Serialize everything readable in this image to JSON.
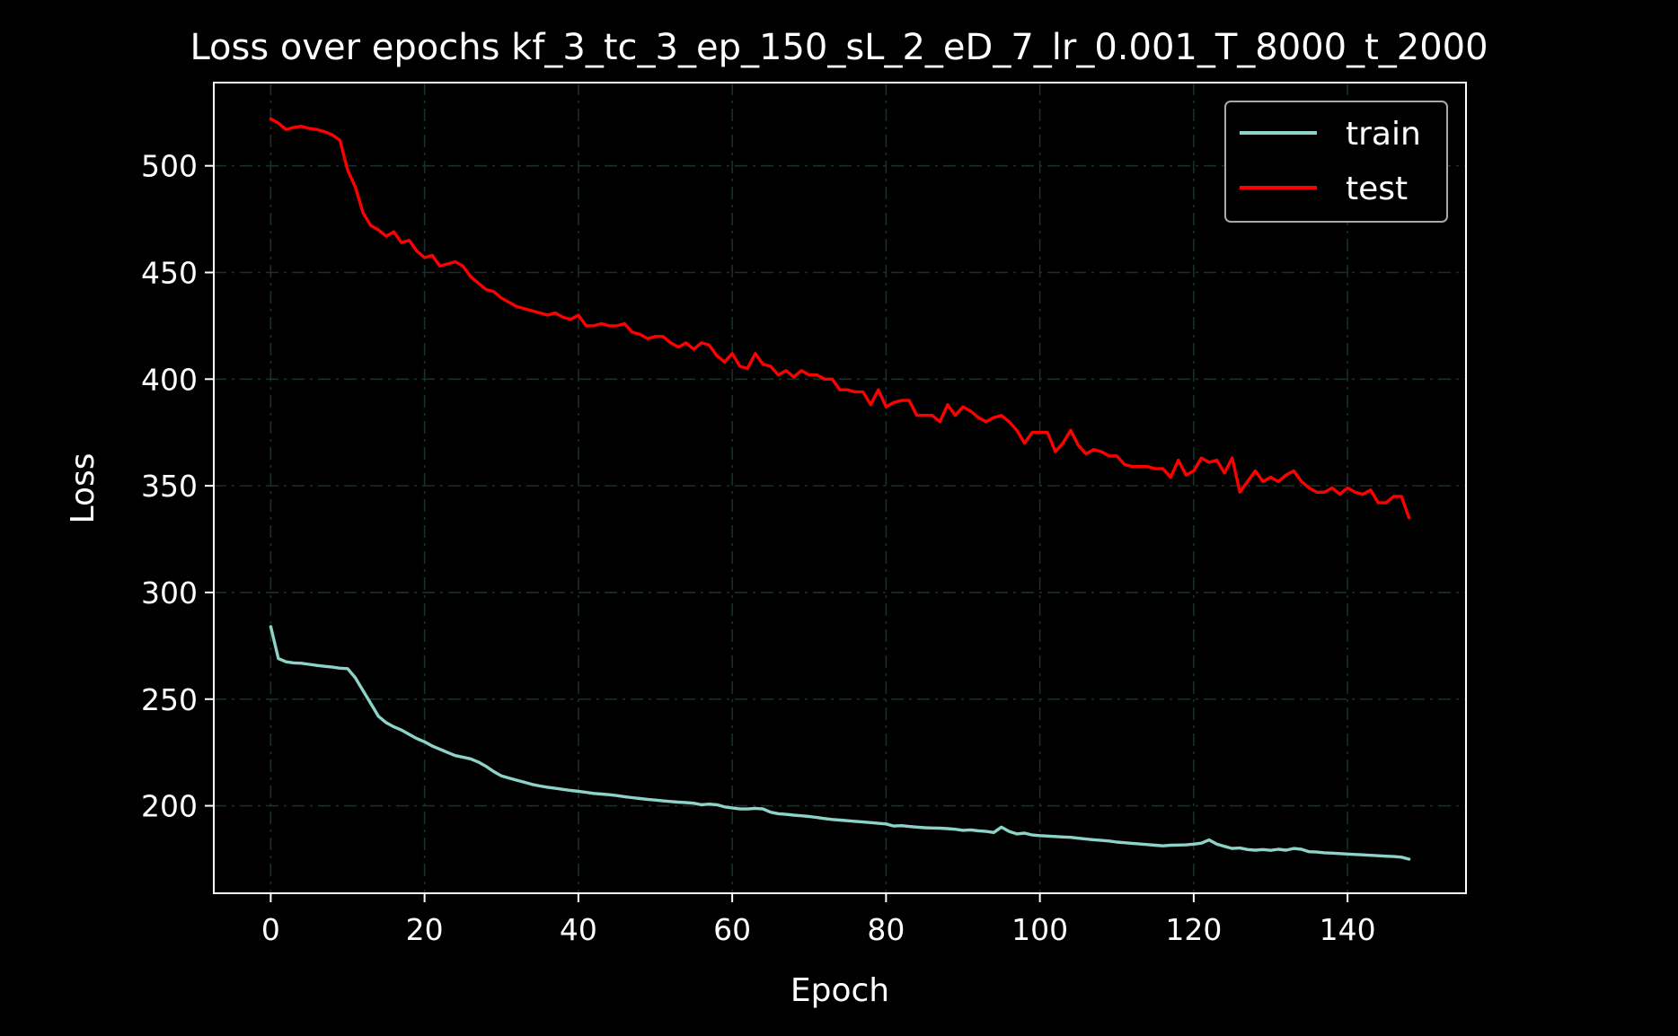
{
  "chart_data": {
    "type": "line",
    "title": "Loss over epochs kf_3_tc_3_ep_150_sL_2_eD_7_lr_0.001_T_8000_t_2000",
    "xlabel": "Epoch",
    "ylabel": "Loss",
    "xlim": [
      -7.4,
      155.4
    ],
    "ylim": [
      159,
      539
    ],
    "xticks": [
      0,
      20,
      40,
      60,
      80,
      100,
      120,
      140
    ],
    "yticks": [
      200,
      250,
      300,
      350,
      400,
      450,
      500
    ],
    "grid": true,
    "legend": {
      "placement": "top-right"
    },
    "series": [
      {
        "name": "train",
        "color": "#8dd3c7",
        "values": [
          284,
          269,
          267.5,
          267,
          266.8,
          266.3,
          265.8,
          265.4,
          265,
          264.5,
          264.3,
          260,
          254,
          248,
          242,
          239,
          237,
          235.5,
          233.5,
          231.5,
          230,
          228,
          226.5,
          225,
          223.5,
          222.8,
          222,
          220.5,
          218.5,
          216,
          214,
          213,
          212,
          211,
          210,
          209.3,
          208.7,
          208.2,
          207.7,
          207.2,
          206.8,
          206.3,
          205.8,
          205.5,
          205.2,
          204.8,
          204.3,
          203.8,
          203.4,
          203,
          202.7,
          202.3,
          202,
          201.7,
          201.5,
          201.2,
          200.5,
          200.8,
          200.5,
          199.5,
          199,
          198.5,
          198.5,
          198.8,
          198.5,
          197,
          196.3,
          196,
          195.6,
          195.3,
          195,
          194.5,
          194,
          193.6,
          193.3,
          193,
          192.7,
          192.4,
          192.1,
          191.8,
          191.5,
          190.5,
          190.7,
          190.3,
          190,
          189.7,
          189.6,
          189.5,
          189.3,
          189,
          188.5,
          188.7,
          188.3,
          188,
          187.5,
          190,
          188,
          186.8,
          187.2,
          186.3,
          186,
          185.8,
          185.6,
          185.4,
          185.2,
          184.8,
          184.4,
          184.1,
          183.8,
          183.5,
          183,
          182.7,
          182.4,
          182.1,
          181.8,
          181.5,
          181.2,
          181.5,
          181.6,
          181.7,
          182,
          182.5,
          184,
          182,
          181,
          180,
          180.2,
          179.5,
          179.2,
          179.5,
          179.1,
          179.6,
          179.2,
          180,
          179.6,
          178.5,
          178.3,
          178,
          177.8,
          177.6,
          177.4,
          177.2,
          177,
          176.8,
          176.6,
          176.4,
          176.2,
          175.9,
          175
        ]
      },
      {
        "name": "test",
        "color": "#ff0000",
        "values": [
          522,
          520,
          517,
          518,
          518.5,
          517.5,
          517,
          516,
          514.5,
          512,
          498,
          490,
          478,
          472,
          470,
          467,
          469,
          464,
          465,
          460,
          457,
          458,
          453,
          454,
          455,
          453,
          448,
          445,
          442,
          441,
          438,
          436,
          434,
          433,
          432,
          431,
          430,
          431,
          429,
          428,
          430,
          425,
          425,
          426,
          425,
          425,
          426,
          422,
          421,
          419,
          420,
          420,
          417,
          415,
          417,
          414,
          417,
          416,
          411,
          408,
          412,
          406,
          405,
          412,
          407,
          406,
          402,
          404,
          401,
          404,
          402,
          402,
          400,
          400,
          395,
          395,
          394,
          394,
          388,
          395,
          387,
          389,
          390,
          390,
          383,
          383,
          383,
          380,
          388,
          383,
          387,
          385,
          382,
          380,
          382,
          383,
          380,
          376,
          370,
          375,
          375,
          375,
          366,
          370,
          376,
          369,
          365,
          367,
          366,
          364,
          364,
          360,
          359,
          359,
          359,
          358,
          358,
          354,
          362,
          355,
          357,
          363,
          361,
          362,
          356,
          363,
          347,
          352,
          357,
          352,
          354,
          352,
          355,
          357,
          352,
          349,
          347,
          347,
          349,
          346,
          349,
          347,
          346,
          348,
          342,
          342,
          345,
          345,
          335
        ]
      }
    ]
  }
}
